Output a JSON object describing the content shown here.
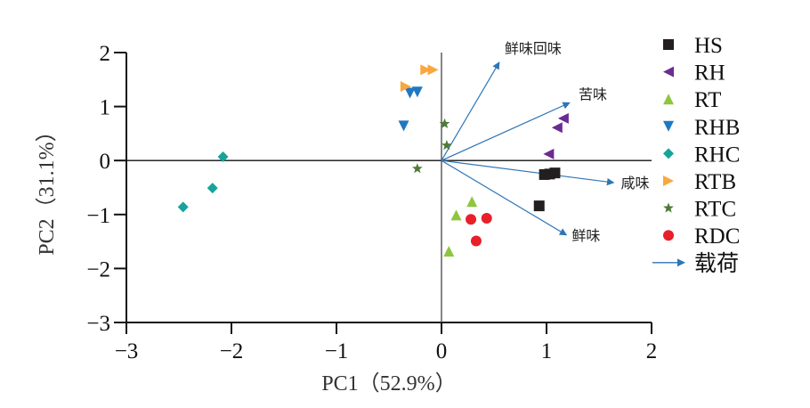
{
  "chart_data": {
    "type": "scatter",
    "subtype": "pca-biplot",
    "xlabel": "PC1（52.9%）",
    "ylabel": "PC2（31.1%）",
    "xlim": [
      -3,
      2
    ],
    "ylim": [
      -3,
      2
    ],
    "x_ticks": [
      -3,
      -2,
      -1,
      0,
      1,
      2
    ],
    "y_ticks": [
      -3,
      -2,
      -1,
      0,
      1,
      2
    ],
    "x_tick_labels": [
      "−3",
      "−2",
      "−1",
      "0",
      "1",
      "2"
    ],
    "y_tick_labels": [
      "−3",
      "−2",
      "−1",
      "0",
      "1",
      "2"
    ],
    "grid": false,
    "legend_position": "right",
    "series": [
      {
        "name": "HS",
        "marker": "square",
        "color": "#231f20",
        "points": [
          [
            0.98,
            -0.26
          ],
          [
            1.03,
            -0.25
          ],
          [
            1.08,
            -0.23
          ],
          [
            0.93,
            -0.84
          ]
        ]
      },
      {
        "name": "RH",
        "marker": "triangle-left",
        "color": "#6a2c91",
        "points": [
          [
            1.16,
            0.78
          ],
          [
            1.1,
            0.61
          ],
          [
            1.02,
            0.12
          ]
        ]
      },
      {
        "name": "RT",
        "marker": "triangle-up",
        "color": "#8dc63f",
        "points": [
          [
            0.29,
            -0.76
          ],
          [
            0.14,
            -1.01
          ],
          [
            0.07,
            -1.68
          ]
        ]
      },
      {
        "name": "RHB",
        "marker": "triangle-down",
        "color": "#1f78c1",
        "points": [
          [
            -0.3,
            1.25
          ],
          [
            -0.23,
            1.27
          ],
          [
            -0.36,
            0.64
          ]
        ]
      },
      {
        "name": "RHC",
        "marker": "diamond",
        "color": "#17a39a",
        "points": [
          [
            -2.08,
            0.07
          ],
          [
            -2.18,
            -0.51
          ],
          [
            -2.46,
            -0.86
          ]
        ]
      },
      {
        "name": "RTB",
        "marker": "triangle-right",
        "color": "#f9a73e",
        "points": [
          [
            -0.15,
            1.68
          ],
          [
            -0.08,
            1.68
          ],
          [
            -0.34,
            1.37
          ]
        ]
      },
      {
        "name": "RTC",
        "marker": "star",
        "color": "#4f7a3a",
        "points": [
          [
            0.03,
            0.68
          ],
          [
            0.05,
            0.28
          ],
          [
            -0.23,
            -0.15
          ]
        ]
      },
      {
        "name": "RDC",
        "marker": "circle",
        "color": "#e8202a",
        "points": [
          [
            0.28,
            -1.09
          ],
          [
            0.43,
            -1.07
          ],
          [
            0.33,
            -1.49
          ]
        ]
      }
    ],
    "loadings": {
      "legend_label": "载荷",
      "color": "#2e75b6",
      "vectors": [
        {
          "name": "鲜味回味",
          "x": 0.55,
          "y": 1.82
        },
        {
          "name": "苦味",
          "x": 1.22,
          "y": 1.07
        },
        {
          "name": "咸味",
          "x": 1.64,
          "y": -0.41
        },
        {
          "name": "鲜味",
          "x": 1.19,
          "y": -1.38
        }
      ]
    }
  }
}
